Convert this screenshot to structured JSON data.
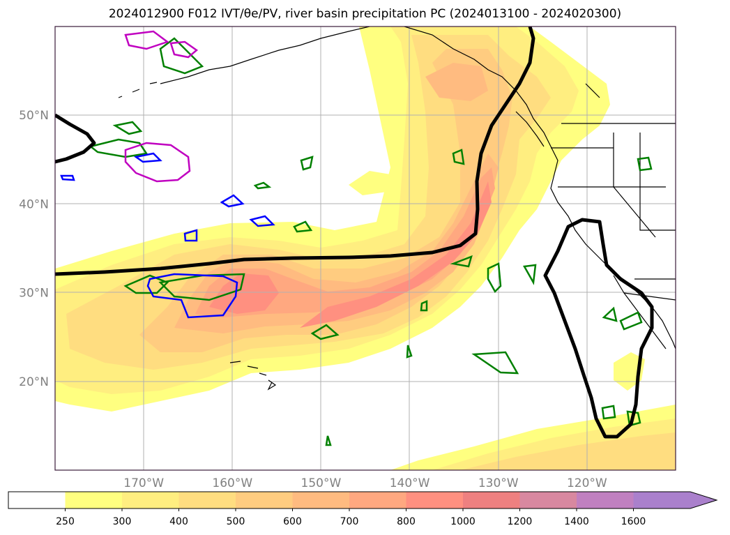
{
  "title": "2024012900 F012 IVT/θe/PV, river basin precipitation PC (2024013100 - 2024020300)",
  "map_extent": {
    "lon": [
      -180,
      -110
    ],
    "lat": [
      10,
      60
    ]
  },
  "grid_lines": true,
  "lon_ticks": [
    {
      "value": -170,
      "label": "170°W"
    },
    {
      "value": -160,
      "label": "160°W"
    },
    {
      "value": -150,
      "label": "150°W"
    },
    {
      "value": -140,
      "label": "140°W"
    },
    {
      "value": -130,
      "label": "130°W"
    },
    {
      "value": -120,
      "label": "120°W"
    }
  ],
  "lat_ticks": [
    {
      "value": 50,
      "label": "50°N"
    },
    {
      "value": 40,
      "label": "40°N"
    },
    {
      "value": 30,
      "label": "30°N"
    },
    {
      "value": 20,
      "label": "20°N"
    }
  ],
  "colorbar": {
    "extend": "max",
    "levels": [
      {
        "label": "250",
        "color": "#ffff80"
      },
      {
        "label": "300",
        "color": "#ffee80"
      },
      {
        "label": "400",
        "color": "#ffdd80"
      },
      {
        "label": "500",
        "color": "#ffcc80"
      },
      {
        "label": "600",
        "color": "#ffbb80"
      },
      {
        "label": "700",
        "color": "#ffa880"
      },
      {
        "label": "800",
        "color": "#ff9080"
      },
      {
        "label": "1000",
        "color": "#ee8080"
      },
      {
        "label": "1200",
        "color": "#d888a0"
      },
      {
        "label": "1400",
        "color": "#c080c0"
      },
      {
        "label": "1600",
        "color": "#aa80cc"
      }
    ],
    "below_color": "#ffffff"
  },
  "colors": {
    "pv_contour": "#000000",
    "theta_e_green": "#008000",
    "theta_e_blue": "#0000ff",
    "theta_e_magenta": "#c000c0",
    "coastline": "#000000"
  }
}
